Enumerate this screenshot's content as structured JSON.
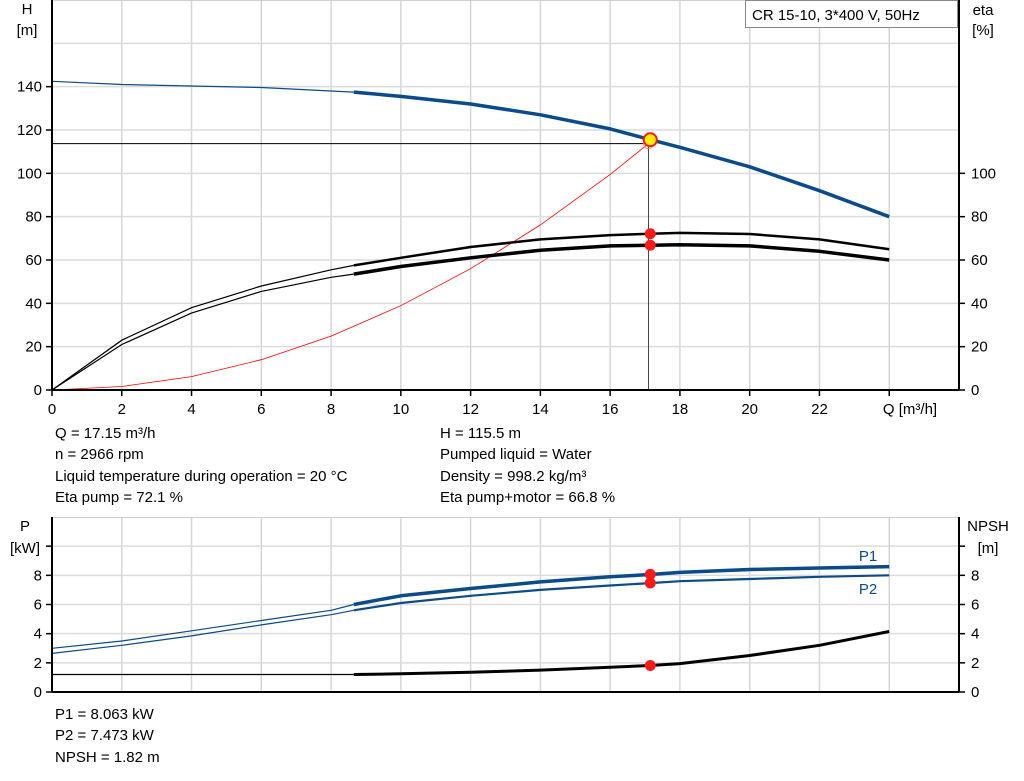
{
  "chart_data": [
    {
      "type": "line",
      "legend_title": "CR 15-10, 3*400 V, 50Hz",
      "xlabel": "Q [m³/h]",
      "ylabel_left": [
        "H",
        "[m]"
      ],
      "ylabel_right": [
        "eta",
        "[%]"
      ],
      "xlim": [
        0,
        26
      ],
      "ylim": [
        0,
        180
      ],
      "xticks": [
        0,
        2,
        4,
        6,
        8,
        10,
        12,
        14,
        16,
        18,
        20,
        22
      ],
      "yticks_left": [
        0,
        20,
        40,
        60,
        80,
        100,
        120,
        140
      ],
      "yticks_right": [
        0,
        20,
        40,
        60,
        80,
        100
      ],
      "grid": true,
      "thin_until_q": 8.65,
      "series": [
        {
          "key": "H",
          "color": "#0b4a8b",
          "x": [
            0,
            2,
            4,
            6,
            8,
            8.65,
            10,
            12,
            14,
            16,
            17.15,
            18,
            20,
            22,
            24
          ],
          "y": [
            142.5,
            141,
            140.3,
            139.6,
            138,
            137.5,
            135.5,
            132,
            127,
            120.5,
            115.5,
            112,
            103,
            92,
            80
          ]
        },
        {
          "key": "eta_pump",
          "color": "#000000",
          "x": [
            0,
            2,
            4,
            6,
            8,
            8.65,
            10,
            12,
            14,
            16,
            17.15,
            18,
            20,
            22,
            24
          ],
          "y": [
            0,
            23,
            38,
            48,
            55.5,
            57.5,
            61,
            66,
            69.5,
            71.5,
            72.1,
            72.5,
            72,
            69.5,
            65
          ]
        },
        {
          "key": "eta_pump_motor",
          "color": "#000000",
          "x": [
            0,
            2,
            4,
            6,
            8,
            8.65,
            10,
            12,
            14,
            16,
            17.15,
            18,
            20,
            22,
            24
          ],
          "y": [
            0,
            21,
            35.5,
            45.5,
            52,
            53.5,
            57,
            61,
            64.5,
            66.5,
            66.8,
            67,
            66.5,
            64,
            60
          ]
        },
        {
          "key": "system",
          "color": "#ff0000",
          "x": [
            0,
            2,
            4,
            6,
            8,
            10,
            12,
            14,
            16,
            17.1
          ],
          "y": [
            0,
            1.6,
            6.2,
            14,
            24.9,
            38.9,
            56,
            76.2,
            99.5,
            113.7
          ]
        }
      ],
      "duty_point": {
        "q": 17.15,
        "h": 115.5,
        "eta_pump": 72.1,
        "eta_pump_motor": 66.8
      },
      "reference_lines": {
        "q": 17.1,
        "h": 113.7
      }
    },
    {
      "type": "line",
      "ylabel_left": [
        "P",
        "[kW]"
      ],
      "ylabel_right": [
        "NPSH",
        "[m]"
      ],
      "xlim": [
        0,
        26
      ],
      "ylim": [
        0,
        12
      ],
      "yticks": [
        0,
        2,
        4,
        6,
        8,
        10
      ],
      "yticklabels": [
        "0",
        "2",
        "4",
        "6",
        "8",
        ""
      ],
      "grid": true,
      "series": [
        {
          "name": "P1",
          "color": "#0b4a8b",
          "x": [
            0,
            2,
            4,
            6,
            8,
            8.65,
            10,
            12,
            14,
            16,
            17.15,
            18,
            20,
            22,
            24
          ],
          "y": [
            3.0,
            3.5,
            4.2,
            4.9,
            5.6,
            6.0,
            6.6,
            7.1,
            7.55,
            7.9,
            8.06,
            8.2,
            8.4,
            8.5,
            8.6
          ]
        },
        {
          "name": "P2",
          "color": "#0b4a8b",
          "x": [
            0,
            2,
            4,
            6,
            8,
            8.65,
            10,
            12,
            14,
            16,
            17.15,
            18,
            20,
            22,
            24
          ],
          "y": [
            2.65,
            3.2,
            3.85,
            4.6,
            5.3,
            5.6,
            6.1,
            6.6,
            7.0,
            7.3,
            7.47,
            7.6,
            7.75,
            7.9,
            8.0
          ]
        },
        {
          "key": "NPSH",
          "color": "#000000",
          "x": [
            0,
            8.65,
            10,
            12,
            14,
            16,
            17.15,
            18,
            20,
            22,
            24
          ],
          "y": [
            1.2,
            1.2,
            1.25,
            1.35,
            1.5,
            1.7,
            1.82,
            1.95,
            2.5,
            3.2,
            4.15
          ]
        }
      ],
      "duty_point": {
        "q": 17.15,
        "p1": 8.063,
        "p2": 7.473,
        "npsh": 1.82
      }
    }
  ],
  "results": {
    "left": [
      "Q = 17.15 m³/h",
      "n = 2966 rpm",
      "Liquid temperature during operation = 20 °C",
      "Eta pump = 72.1 %"
    ],
    "right": [
      "H = 115.5 m",
      "Pumped liquid = Water",
      "Density = 998.2 kg/m³",
      "Eta pump+motor = 66.8 %"
    ],
    "lower": [
      "P1 = 8.063 kW",
      "P2 = 7.473 kW",
      "NPSH = 1.82 m"
    ]
  }
}
